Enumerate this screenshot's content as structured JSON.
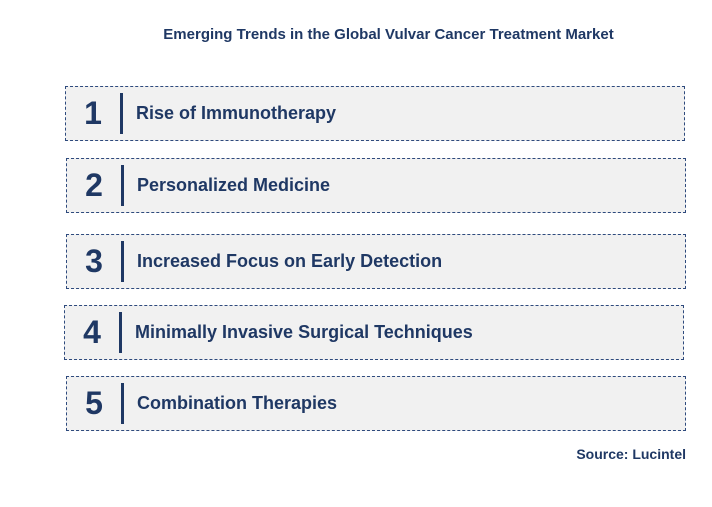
{
  "title": "Emerging Trends in the Global Vulvar Cancer Treatment Market",
  "trends": [
    {
      "number": "1",
      "label": "Rise of Immunotherapy"
    },
    {
      "number": "2",
      "label": "Personalized Medicine"
    },
    {
      "number": "3",
      "label": "Increased Focus on Early Detection"
    },
    {
      "number": "4",
      "label": "Minimally Invasive Surgical Techniques"
    },
    {
      "number": "5",
      "label": "Combination Therapies"
    }
  ],
  "source": "Source: Lucintel",
  "colors": {
    "text": "#1f3864",
    "box_fill": "#f1f1f1",
    "box_border": "#2e4a7d"
  }
}
